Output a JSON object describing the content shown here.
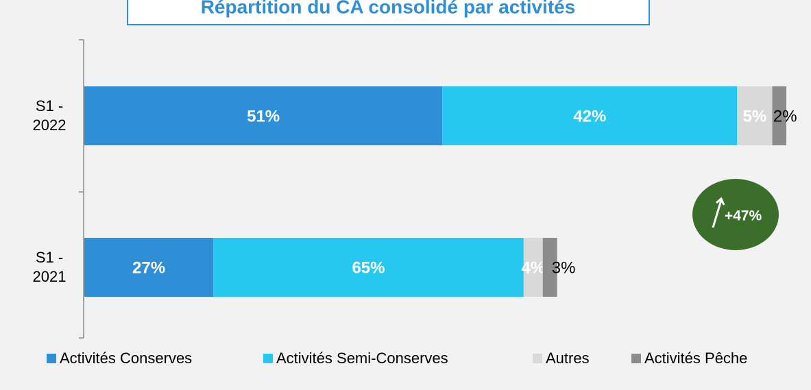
{
  "chart_data": {
    "type": "stacked-barh",
    "title": "Répartition du CA consolidé par activités",
    "categories": [
      "S1 - 2022",
      "S1 - 2021"
    ],
    "series": [
      {
        "name": "Activités Conserves",
        "color": "#2e8fd6",
        "values": [
          51,
          27
        ],
        "value_labels": [
          "51%",
          "27%"
        ]
      },
      {
        "name": "Activités Semi-Conserves",
        "color": "#26c8f0",
        "values": [
          42,
          65
        ],
        "value_labels": [
          "42%",
          "65%"
        ]
      },
      {
        "name": "Autres",
        "color": "#d9d9d9",
        "values": [
          5,
          4
        ],
        "value_labels": [
          "5%",
          "4%"
        ]
      },
      {
        "name": "Activités Pêche",
        "color": "#8c8c8c",
        "values": [
          2,
          3
        ],
        "value_labels": [
          "2%",
          "3%"
        ]
      }
    ],
    "growth": {
      "value": 47,
      "label": "+47%"
    },
    "legend": "bottom"
  }
}
